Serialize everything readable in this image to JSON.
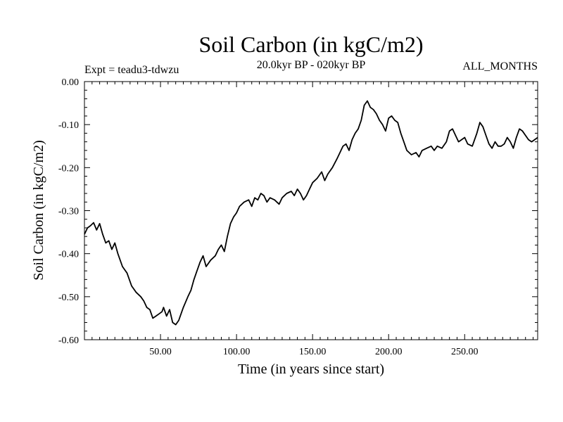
{
  "chart_data": {
    "type": "line",
    "title": "Soil Carbon (in kgC/m2)",
    "subtitle": "20.0kyr BP - 020kyr BP",
    "experiment_label": "Expt = teadu3-tdwzu",
    "period_label": "ALL_MONTHS",
    "xlabel": "Time (in years since start)",
    "ylabel": "Soil Carbon (in kgC/m2)",
    "xlim": [
      0,
      298
    ],
    "ylim": [
      -0.6,
      0.0
    ],
    "xticks": [
      50,
      100,
      150,
      200,
      250
    ],
    "xtick_labels": [
      "50.00",
      "100.00",
      "150.00",
      "200.00",
      "250.00"
    ],
    "yticks": [
      0.0,
      -0.1,
      -0.2,
      -0.3,
      -0.4,
      -0.5,
      -0.6
    ],
    "ytick_labels": [
      "0.00",
      "-0.10",
      "-0.20",
      "-0.30",
      "-0.40",
      "-0.50",
      "-0.60"
    ],
    "line_color": "#000000",
    "series": [
      {
        "name": "Soil Carbon",
        "x": [
          0,
          2,
          4,
          6,
          8,
          10,
          12,
          14,
          16,
          18,
          20,
          22,
          25,
          28,
          31,
          34,
          37,
          39,
          41,
          43,
          45,
          47,
          49,
          51,
          52,
          54,
          56,
          58,
          60,
          62,
          65,
          68,
          70,
          72,
          74,
          76,
          78,
          80,
          83,
          86,
          88,
          90,
          92,
          94,
          96,
          98,
          100,
          102,
          105,
          108,
          110,
          112,
          114,
          116,
          118,
          120,
          122,
          125,
          128,
          130,
          133,
          136,
          138,
          140,
          142,
          144,
          146,
          148,
          150,
          153,
          156,
          158,
          160,
          163,
          166,
          168,
          170,
          172,
          174,
          176,
          178,
          180,
          182,
          184,
          186,
          188,
          190,
          192,
          194,
          196,
          198,
          200,
          202,
          204,
          206,
          208,
          210,
          212,
          215,
          218,
          220,
          222,
          225,
          228,
          230,
          232,
          235,
          238,
          240,
          242,
          244,
          246,
          248,
          250,
          252,
          255,
          258,
          260,
          262,
          264,
          266,
          268,
          270,
          272,
          274,
          276,
          278,
          280,
          282,
          284,
          286,
          288,
          290,
          292,
          294,
          296,
          298
        ],
        "values": [
          -0.355,
          -0.34,
          -0.335,
          -0.328,
          -0.345,
          -0.33,
          -0.355,
          -0.375,
          -0.37,
          -0.39,
          -0.375,
          -0.4,
          -0.43,
          -0.445,
          -0.475,
          -0.49,
          -0.5,
          -0.51,
          -0.525,
          -0.53,
          -0.55,
          -0.545,
          -0.54,
          -0.535,
          -0.525,
          -0.545,
          -0.53,
          -0.56,
          -0.565,
          -0.555,
          -0.525,
          -0.5,
          -0.485,
          -0.46,
          -0.44,
          -0.42,
          -0.405,
          -0.43,
          -0.415,
          -0.405,
          -0.39,
          -0.38,
          -0.395,
          -0.36,
          -0.33,
          -0.315,
          -0.305,
          -0.29,
          -0.28,
          -0.275,
          -0.29,
          -0.27,
          -0.275,
          -0.26,
          -0.265,
          -0.28,
          -0.27,
          -0.275,
          -0.285,
          -0.27,
          -0.26,
          -0.255,
          -0.265,
          -0.25,
          -0.26,
          -0.275,
          -0.265,
          -0.25,
          -0.235,
          -0.225,
          -0.21,
          -0.23,
          -0.215,
          -0.2,
          -0.18,
          -0.165,
          -0.15,
          -0.145,
          -0.16,
          -0.135,
          -0.12,
          -0.11,
          -0.09,
          -0.055,
          -0.045,
          -0.06,
          -0.065,
          -0.075,
          -0.09,
          -0.1,
          -0.115,
          -0.085,
          -0.08,
          -0.09,
          -0.095,
          -0.12,
          -0.14,
          -0.16,
          -0.17,
          -0.165,
          -0.175,
          -0.16,
          -0.155,
          -0.15,
          -0.16,
          -0.15,
          -0.155,
          -0.14,
          -0.115,
          -0.11,
          -0.125,
          -0.14,
          -0.135,
          -0.13,
          -0.145,
          -0.15,
          -0.12,
          -0.095,
          -0.105,
          -0.125,
          -0.145,
          -0.155,
          -0.14,
          -0.15,
          -0.15,
          -0.145,
          -0.13,
          -0.14,
          -0.155,
          -0.13,
          -0.11,
          -0.115,
          -0.125,
          -0.135,
          -0.14,
          -0.135,
          -0.13
        ]
      }
    ]
  }
}
